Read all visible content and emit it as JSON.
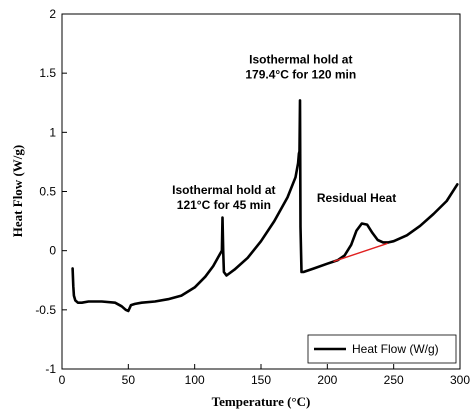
{
  "chart_data": {
    "type": "line",
    "title": "",
    "xlabel": "Temperature (°C)",
    "ylabel": "Heat Flow (W/g)",
    "xlim": [
      0,
      300
    ],
    "ylim": [
      -1,
      2
    ],
    "xticks": [
      "0",
      "50",
      "100",
      "150",
      "200",
      "250",
      "300"
    ],
    "yticks": [
      "-1",
      "-0.5",
      "0",
      "0.5",
      "1",
      "1.5",
      "2"
    ],
    "grid": false,
    "legend": {
      "position": "bottom-right",
      "entries": [
        "Heat Flow (W/g)"
      ]
    },
    "series": [
      {
        "name": "Heat Flow (W/g)",
        "color": "#000000",
        "x": [
          8,
          8.5,
          9,
          10,
          12,
          15,
          20,
          30,
          40,
          45,
          48,
          50,
          52,
          55,
          60,
          70,
          80,
          90,
          100,
          108,
          114,
          118,
          120.5,
          121,
          121.5,
          122,
          124,
          130,
          140,
          150,
          160,
          170,
          176,
          178,
          178.6,
          179,
          179.4,
          179.8,
          180.5,
          182,
          190,
          200,
          208,
          213,
          218,
          222,
          226,
          230,
          234,
          238,
          242,
          246,
          250,
          260,
          270,
          280,
          290,
          298
        ],
        "y": [
          -0.15,
          -0.3,
          -0.38,
          -0.42,
          -0.44,
          -0.44,
          -0.43,
          -0.43,
          -0.44,
          -0.47,
          -0.5,
          -0.51,
          -0.46,
          -0.45,
          -0.44,
          -0.43,
          -0.41,
          -0.38,
          -0.31,
          -0.22,
          -0.13,
          -0.05,
          0.0,
          0.28,
          0.0,
          -0.18,
          -0.21,
          -0.16,
          -0.06,
          0.08,
          0.25,
          0.45,
          0.62,
          0.74,
          0.82,
          0.84,
          1.27,
          0.2,
          -0.18,
          -0.18,
          -0.15,
          -0.11,
          -0.08,
          -0.04,
          0.05,
          0.17,
          0.23,
          0.22,
          0.15,
          0.09,
          0.07,
          0.07,
          0.08,
          0.13,
          0.21,
          0.31,
          0.42,
          0.56
        ]
      },
      {
        "name": "",
        "color": "#e02020",
        "x": [
          205,
          245
        ],
        "y": [
          -0.09,
          0.06
        ]
      }
    ],
    "annotations": [
      {
        "lines": [
          "Isothermal hold at",
          "121°C for 45 min"
        ],
        "x": 122,
        "y": 0.48
      },
      {
        "lines": [
          "Isothermal hold at",
          "179.4°C for 120 min"
        ],
        "x": 180,
        "y": 1.58
      },
      {
        "lines": [
          "Residual Heat"
        ],
        "x": 222,
        "y": 0.41
      }
    ]
  }
}
